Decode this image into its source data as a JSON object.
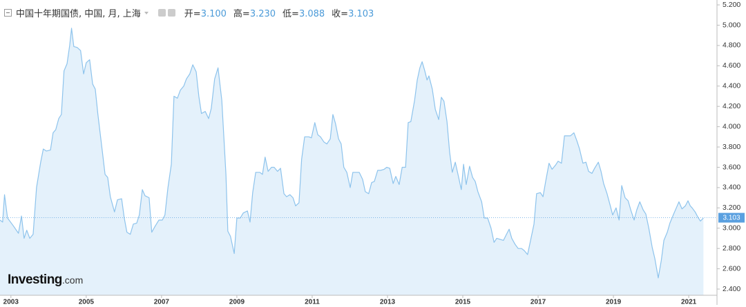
{
  "chart_data": {
    "type": "area",
    "title": "中国十年期国债, 中国, 月, 上海",
    "ohlc": [
      {
        "name": "开=",
        "value": 3.1,
        "label": "3.100"
      },
      {
        "name": "高=",
        "value": 3.23,
        "label": "3.230"
      },
      {
        "name": "低=",
        "value": 3.088,
        "label": "3.088"
      },
      {
        "name": "收=",
        "value": 3.103,
        "label": "3.103"
      }
    ],
    "logo": [
      "Investing",
      ".com"
    ],
    "last_value": 3.103,
    "line_color": "#8dc3ec",
    "fill_color": "#e4f1fb",
    "marker_color": "#5aa0e0",
    "xlim": [
      2002.71,
      2021.75
    ],
    "ylim": [
      2.339,
      5.248
    ],
    "xticks": [
      2003,
      2005,
      2007,
      2009,
      2011,
      2013,
      2015,
      2017,
      2019,
      2021
    ],
    "yticks": [
      {
        "value": 2.4,
        "label": "2.400"
      },
      {
        "value": 2.6,
        "label": "2.600"
      },
      {
        "value": 2.8,
        "label": "2.800"
      },
      {
        "value": 3.0,
        "label": "3.000"
      },
      {
        "value": 3.2,
        "label": "3.200"
      },
      {
        "value": 3.4,
        "label": "3.400"
      },
      {
        "value": 3.6,
        "label": "3.600"
      },
      {
        "value": 3.8,
        "label": "3.800"
      },
      {
        "value": 4.0,
        "label": "4.000"
      },
      {
        "value": 4.2,
        "label": "4.200"
      },
      {
        "value": 4.4,
        "label": "4.400"
      },
      {
        "value": 4.6,
        "label": "4.600"
      },
      {
        "value": 4.8,
        "label": "4.800"
      },
      {
        "value": 5.0,
        "label": "5.000"
      },
      {
        "value": 5.2,
        "label": "5.200"
      }
    ],
    "x": [
      2002.71,
      2002.78,
      2002.83,
      2002.91,
      2003.07,
      2003.2,
      2003.28,
      2003.35,
      2003.42,
      2003.5,
      2003.59,
      2003.68,
      2003.79,
      2003.86,
      2003.94,
      2004.05,
      2004.12,
      2004.19,
      2004.27,
      2004.34,
      2004.41,
      2004.49,
      2004.56,
      2004.61,
      2004.67,
      2004.76,
      2004.85,
      2004.93,
      2005.0,
      2005.09,
      2005.17,
      2005.24,
      2005.31,
      2005.42,
      2005.5,
      2005.57,
      2005.64,
      2005.75,
      2005.83,
      2005.94,
      2006.01,
      2006.08,
      2006.17,
      2006.25,
      2006.34,
      2006.41,
      2006.49,
      2006.56,
      2006.67,
      2006.74,
      2006.83,
      2006.93,
      2007.02,
      2007.09,
      2007.17,
      2007.26,
      2007.33,
      2007.42,
      2007.5,
      2007.59,
      2007.66,
      2007.75,
      2007.83,
      2007.92,
      2007.99,
      2008.06,
      2008.16,
      2008.25,
      2008.32,
      2008.41,
      2008.5,
      2008.6,
      2008.71,
      2008.76,
      2008.83,
      2008.93,
      2009.0,
      2009.09,
      2009.17,
      2009.28,
      2009.35,
      2009.42,
      2009.5,
      2009.61,
      2009.68,
      2009.75,
      2009.83,
      2009.92,
      2009.99,
      2010.08,
      2010.16,
      2010.25,
      2010.32,
      2010.41,
      2010.49,
      2010.56,
      2010.65,
      2010.72,
      2010.8,
      2010.91,
      2010.98,
      2011.07,
      2011.15,
      2011.22,
      2011.31,
      2011.39,
      2011.48,
      2011.55,
      2011.62,
      2011.7,
      2011.77,
      2011.84,
      2011.92,
      2012.01,
      2012.08,
      2012.17,
      2012.25,
      2012.34,
      2012.41,
      2012.5,
      2012.58,
      2012.65,
      2012.74,
      2012.82,
      2012.91,
      2012.98,
      2013.06,
      2013.15,
      2013.22,
      2013.31,
      2013.39,
      2013.48,
      2013.55,
      2013.62,
      2013.72,
      2013.79,
      2013.86,
      2013.92,
      2013.99,
      2014.05,
      2014.1,
      2014.19,
      2014.27,
      2014.36,
      2014.43,
      2014.5,
      2014.58,
      2014.65,
      2014.72,
      2014.8,
      2014.89,
      2014.96,
      2015.02,
      2015.09,
      2015.18,
      2015.26,
      2015.33,
      2015.4,
      2015.5,
      2015.57,
      2015.66,
      2015.75,
      2015.83,
      2015.9,
      2015.99,
      2016.08,
      2016.16,
      2016.23,
      2016.3,
      2016.39,
      2016.47,
      2016.56,
      2016.63,
      2016.72,
      2016.8,
      2016.89,
      2016.96,
      2017.06,
      2017.13,
      2017.2,
      2017.29,
      2017.37,
      2017.46,
      2017.53,
      2017.62,
      2017.7,
      2017.79,
      2017.86,
      2017.95,
      2018.03,
      2018.1,
      2018.19,
      2018.27,
      2018.34,
      2018.43,
      2018.5,
      2018.6,
      2018.67,
      2018.74,
      2018.83,
      2018.91,
      2018.98,
      2019.07,
      2019.15,
      2019.22,
      2019.31,
      2019.39,
      2019.46,
      2019.55,
      2019.62,
      2019.7,
      2019.79,
      2019.86,
      2019.94,
      2020.03,
      2020.1,
      2020.19,
      2020.27,
      2020.34,
      2020.43,
      2020.5,
      2020.6,
      2020.67,
      2020.74,
      2020.82,
      2020.91,
      2020.98,
      2021.04,
      2021.09,
      2021.17,
      2021.24,
      2021.31,
      2021.39
    ],
    "values": [
      3.08,
      3.06,
      3.33,
      3.1,
      3.02,
      2.95,
      3.12,
      2.9,
      2.98,
      2.9,
      2.94,
      3.4,
      3.65,
      3.78,
      3.76,
      3.77,
      3.94,
      3.97,
      4.08,
      4.12,
      4.55,
      4.62,
      4.8,
      4.97,
      4.79,
      4.78,
      4.75,
      4.52,
      4.63,
      4.66,
      4.42,
      4.37,
      4.12,
      3.78,
      3.53,
      3.5,
      3.31,
      3.16,
      3.28,
      3.29,
      3.1,
      2.96,
      2.94,
      3.04,
      3.05,
      3.13,
      3.38,
      3.32,
      3.3,
      2.96,
      3.02,
      3.08,
      3.08,
      3.13,
      3.4,
      3.63,
      4.3,
      4.28,
      4.36,
      4.4,
      4.47,
      4.52,
      4.61,
      4.54,
      4.3,
      4.13,
      4.15,
      4.08,
      4.18,
      4.47,
      4.58,
      4.26,
      3.53,
      2.97,
      2.92,
      2.75,
      3.1,
      3.1,
      3.15,
      3.17,
      3.06,
      3.35,
      3.55,
      3.55,
      3.53,
      3.7,
      3.56,
      3.6,
      3.6,
      3.56,
      3.59,
      3.34,
      3.31,
      3.33,
      3.3,
      3.22,
      3.25,
      3.68,
      3.9,
      3.9,
      3.89,
      4.04,
      3.92,
      3.9,
      3.85,
      3.83,
      3.88,
      4.12,
      4.03,
      3.88,
      3.83,
      3.6,
      3.55,
      3.4,
      3.55,
      3.55,
      3.55,
      3.48,
      3.36,
      3.34,
      3.45,
      3.46,
      3.57,
      3.57,
      3.58,
      3.6,
      3.59,
      3.44,
      3.51,
      3.43,
      3.6,
      3.6,
      4.04,
      4.05,
      4.26,
      4.46,
      4.58,
      4.64,
      4.55,
      4.46,
      4.5,
      4.37,
      4.17,
      4.07,
      4.29,
      4.25,
      4.05,
      3.75,
      3.55,
      3.65,
      3.5,
      3.38,
      3.63,
      3.43,
      3.61,
      3.5,
      3.46,
      3.36,
      3.26,
      3.1,
      3.1,
      3.0,
      2.86,
      2.9,
      2.89,
      2.88,
      2.94,
      2.99,
      2.9,
      2.84,
      2.8,
      2.8,
      2.78,
      2.74,
      2.88,
      3.04,
      3.34,
      3.35,
      3.31,
      3.46,
      3.64,
      3.58,
      3.62,
      3.66,
      3.64,
      3.91,
      3.91,
      3.91,
      3.94,
      3.86,
      3.78,
      3.64,
      3.65,
      3.56,
      3.54,
      3.59,
      3.65,
      3.56,
      3.44,
      3.34,
      3.23,
      3.13,
      3.2,
      3.08,
      3.42,
      3.3,
      3.27,
      3.18,
      3.08,
      3.18,
      3.26,
      3.18,
      3.14,
      3.0,
      2.81,
      2.7,
      2.51,
      2.68,
      2.88,
      2.96,
      3.05,
      3.14,
      3.2,
      3.26,
      3.19,
      3.22,
      3.27,
      3.22,
      3.2,
      3.16,
      3.11,
      3.07,
      3.1
    ]
  }
}
